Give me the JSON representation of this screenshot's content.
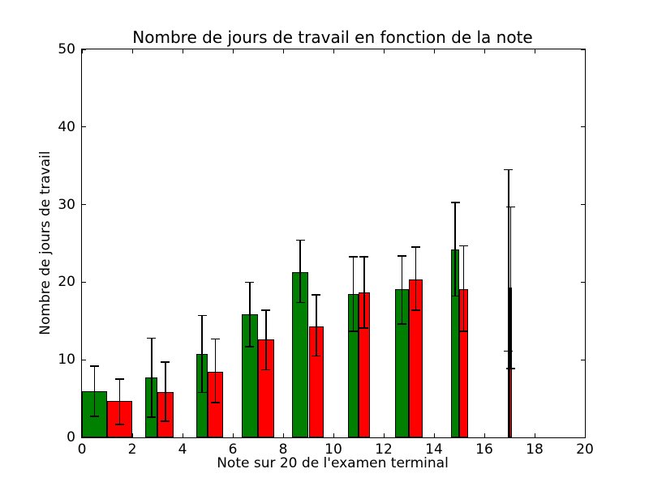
{
  "chart_data": {
    "type": "bar",
    "title": "Nombre de jours de travail en fonction de la note",
    "xlabel": "Note sur 20 de l'examen terminal",
    "ylabel": "Nombre de jours de travail",
    "xlim": [
      0,
      20
    ],
    "ylim": [
      0,
      50
    ],
    "xticks": [
      0,
      2,
      4,
      6,
      8,
      10,
      12,
      14,
      16,
      18,
      20
    ],
    "yticks": [
      0,
      10,
      20,
      30,
      40,
      50
    ],
    "grid": false,
    "legend": null,
    "bar_edge_color": "#000000",
    "error_bar_color": "#000000",
    "notes": [
      1,
      3,
      5,
      7,
      9,
      11,
      13,
      15,
      17
    ],
    "series": [
      {
        "name": "green",
        "color": "#008000",
        "bars": [
          {
            "x0": 0.0,
            "x1": 1.0,
            "value": 6.0,
            "err_lo": 2.7,
            "err_hi": 9.2
          },
          {
            "x0": 2.53,
            "x1": 3.0,
            "value": 7.7,
            "err_lo": 2.6,
            "err_hi": 12.8
          },
          {
            "x0": 4.55,
            "x1": 5.0,
            "value": 10.8,
            "err_lo": 5.8,
            "err_hi": 15.7
          },
          {
            "x0": 6.35,
            "x1": 7.0,
            "value": 15.9,
            "err_lo": 11.7,
            "err_hi": 20.0
          },
          {
            "x0": 8.37,
            "x1": 9.0,
            "value": 21.3,
            "err_lo": 17.4,
            "err_hi": 25.4
          },
          {
            "x0": 10.57,
            "x1": 11.0,
            "value": 18.5,
            "err_lo": 13.7,
            "err_hi": 23.3
          },
          {
            "x0": 12.45,
            "x1": 13.0,
            "value": 19.1,
            "err_lo": 14.6,
            "err_hi": 23.4
          },
          {
            "x0": 14.68,
            "x1": 15.0,
            "value": 24.2,
            "err_lo": 18.2,
            "err_hi": 30.3
          },
          {
            "x0": 16.93,
            "x1": 17.0,
            "value": 23.0,
            "err_lo": 11.1,
            "err_hi": 34.5
          }
        ]
      },
      {
        "name": "red",
        "color": "#ff0000",
        "bars": [
          {
            "x0": 1.0,
            "x1": 2.0,
            "value": 4.7,
            "err_lo": 1.7,
            "err_hi": 7.5
          },
          {
            "x0": 3.0,
            "x1": 3.63,
            "value": 5.8,
            "err_lo": 2.1,
            "err_hi": 9.7
          },
          {
            "x0": 5.0,
            "x1": 5.6,
            "value": 8.5,
            "err_lo": 4.5,
            "err_hi": 12.7
          },
          {
            "x0": 7.0,
            "x1": 7.63,
            "value": 12.6,
            "err_lo": 8.7,
            "err_hi": 16.4
          },
          {
            "x0": 9.03,
            "x1": 9.6,
            "value": 14.3,
            "err_lo": 10.5,
            "err_hi": 18.4
          },
          {
            "x0": 11.0,
            "x1": 11.45,
            "value": 18.7,
            "err_lo": 14.1,
            "err_hi": 23.3
          },
          {
            "x0": 13.0,
            "x1": 13.55,
            "value": 20.4,
            "err_lo": 16.4,
            "err_hi": 24.5
          },
          {
            "x0": 15.0,
            "x1": 15.35,
            "value": 19.1,
            "err_lo": 13.7,
            "err_hi": 24.7
          },
          {
            "x0": 17.0,
            "x1": 17.1,
            "value": 19.3,
            "err_lo": 8.9,
            "err_hi": 29.7
          }
        ]
      }
    ]
  }
}
